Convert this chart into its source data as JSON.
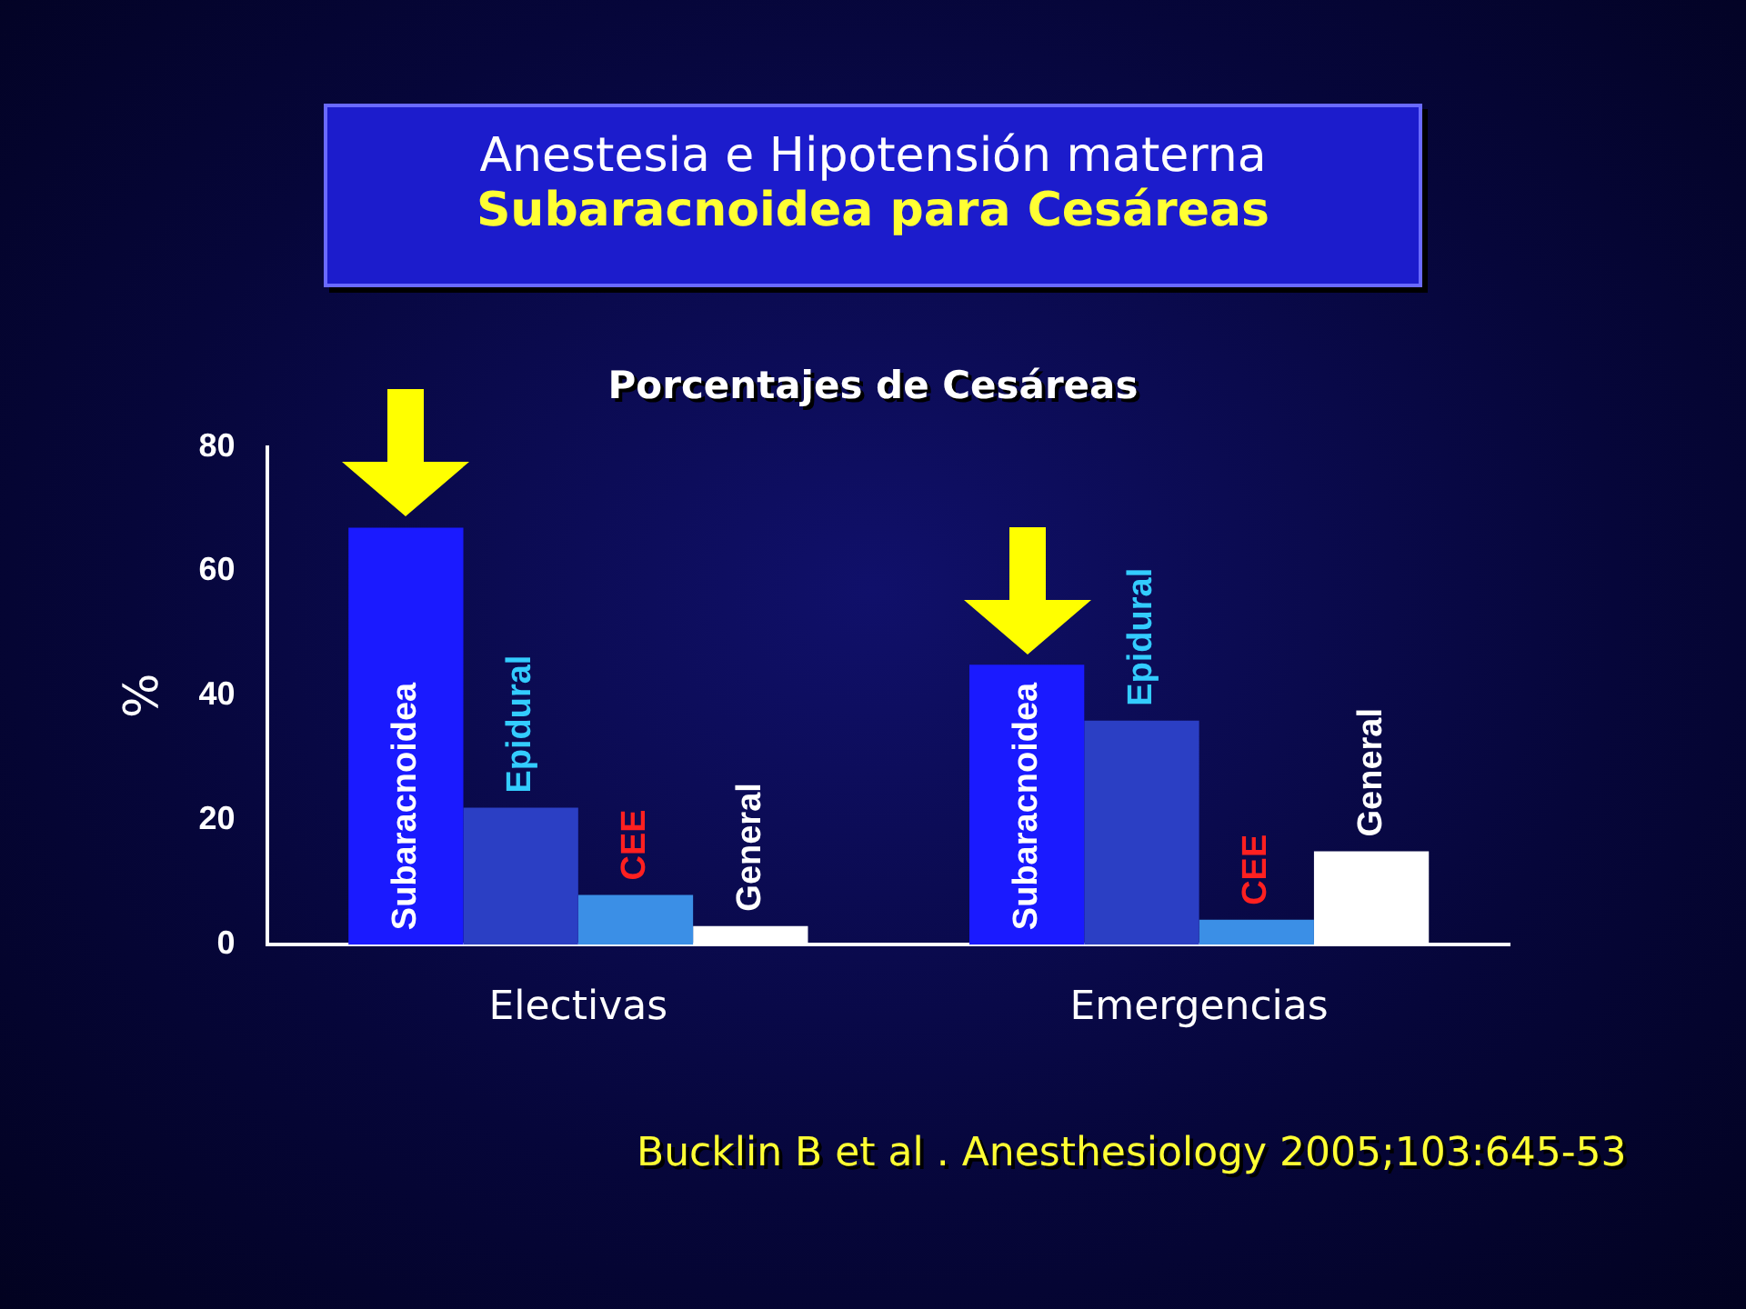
{
  "chart_data": {
    "type": "bar",
    "title": "Anestesia e Hipotensión materna",
    "subtitle": "Subaracnoidea para Cesáreas",
    "annotations": [
      "Porcentajes de Cesáreas",
      "Bucklin B  et al . Anesthesiology 2005;103:645-53"
    ],
    "ylabel": "%",
    "categories": [
      "Electivas",
      "Emergencias"
    ],
    "series": [
      {
        "name": "Subaracnoidea",
        "color": "#1a1aff",
        "values": [
          67,
          45
        ]
      },
      {
        "name": "Epidural",
        "color": "#2b3fc4",
        "values": [
          22,
          36
        ]
      },
      {
        "name": "CEE",
        "color": "#3b8fe6",
        "values": [
          8,
          4
        ]
      },
      {
        "name": "General",
        "color": "#ffffff",
        "values": [
          3,
          15
        ]
      }
    ],
    "ylim": [
      0,
      80
    ],
    "yticks": [
      0,
      20,
      40,
      60,
      80
    ],
    "grid": false,
    "legend": false
  }
}
